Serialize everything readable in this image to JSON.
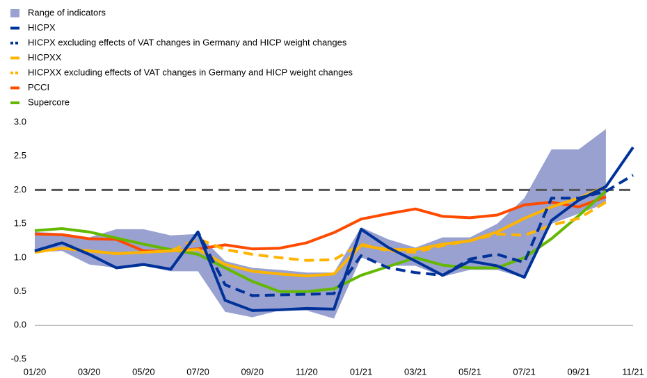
{
  "chart_data": {
    "type": "line",
    "categories": [
      "01/20",
      null,
      "03/20",
      null,
      "05/20",
      null,
      "07/20",
      null,
      "09/20",
      null,
      "11/20",
      null,
      "01/21",
      null,
      "03/21",
      null,
      "05/21",
      null,
      "07/21",
      null,
      "09/21",
      null,
      "11/21"
    ],
    "ylim": [
      -0.5,
      3.0
    ],
    "yticks": [
      {
        "value": -0.5,
        "label": "-0.5"
      },
      {
        "value": 0,
        "label": "0.0"
      },
      {
        "value": 0.5,
        "label": "0.5"
      },
      {
        "value": 1,
        "label": "1.0"
      },
      {
        "value": 1.5,
        "label": "1.5"
      },
      {
        "value": 2,
        "label": "2.0"
      },
      {
        "value": 2.5,
        "label": "2.5"
      },
      {
        "value": 3,
        "label": "3.0"
      }
    ],
    "reference_line": 2,
    "range": {
      "name": "Range of indicators",
      "color": "#98a1d0",
      "high": [
        1.38,
        1.36,
        1.3,
        1.42,
        1.42,
        1.33,
        1.35,
        0.95,
        0.85,
        0.82,
        0.78,
        0.78,
        1.45,
        1.27,
        1.15,
        1.3,
        1.3,
        1.5,
        1.88,
        2.6,
        2.6,
        2.9,
        null
      ],
      "low": [
        1.08,
        1.1,
        0.9,
        0.85,
        0.88,
        0.8,
        0.8,
        0.2,
        0.12,
        0.22,
        0.22,
        0.1,
        1.0,
        0.88,
        0.88,
        0.72,
        0.82,
        0.82,
        0.7,
        1.5,
        1.65,
        1.8,
        null
      ]
    },
    "series": [
      {
        "name": "HICPX",
        "color": "#003299",
        "dashed": false,
        "values": [
          1.1,
          1.22,
          1.05,
          0.85,
          0.9,
          0.83,
          1.38,
          0.37,
          0.22,
          0.23,
          0.25,
          0.24,
          1.42,
          1.15,
          0.95,
          0.74,
          0.95,
          0.88,
          0.71,
          1.55,
          1.85,
          2.05,
          2.63
        ]
      },
      {
        "name": "HICPX excluding effects of VAT changes in Germany and HICP weight changes",
        "color": "#003299",
        "dashed": true,
        "values": [
          1.1,
          1.22,
          1.05,
          0.85,
          0.9,
          0.83,
          1.38,
          0.6,
          0.44,
          0.45,
          0.46,
          0.47,
          1.03,
          0.85,
          0.78,
          0.74,
          0.98,
          1.05,
          0.93,
          1.88,
          1.88,
          1.98,
          2.22
        ]
      },
      {
        "name": "HICPXX",
        "color": "#ffb400",
        "dashed": false,
        "values": [
          1.08,
          1.14,
          1.1,
          1.06,
          1.08,
          1.1,
          1.12,
          0.9,
          0.8,
          0.76,
          0.73,
          0.76,
          1.18,
          1.12,
          1.12,
          1.2,
          1.25,
          1.38,
          1.58,
          1.75,
          1.88,
          2.05,
          null
        ]
      },
      {
        "name": "HICPXX excluding effects of VAT changes in Germany and HICP weight changes",
        "color": "#ffb400",
        "dashed": true,
        "values": [
          1.08,
          1.14,
          1.1,
          1.06,
          1.08,
          1.1,
          1.28,
          1.12,
          1.05,
          1.0,
          0.96,
          0.97,
          1.2,
          1.1,
          1.08,
          1.18,
          1.25,
          1.35,
          1.33,
          1.48,
          1.58,
          1.82,
          null
        ]
      },
      {
        "name": "PCCI",
        "color": "#ff4b00",
        "dashed": false,
        "values": [
          1.35,
          1.34,
          1.28,
          1.27,
          1.1,
          1.1,
          1.13,
          1.19,
          1.13,
          1.14,
          1.22,
          1.37,
          1.57,
          1.65,
          1.72,
          1.61,
          1.59,
          1.63,
          1.78,
          1.82,
          1.75,
          1.9,
          null
        ]
      },
      {
        "name": "Supercore",
        "color": "#65b800",
        "dashed": false,
        "values": [
          1.4,
          1.43,
          1.38,
          1.29,
          1.2,
          1.12,
          1.05,
          0.85,
          0.65,
          0.5,
          0.5,
          0.54,
          0.74,
          0.87,
          1.0,
          0.89,
          0.85,
          0.85,
          1.0,
          1.28,
          1.62,
          1.98,
          null
        ]
      }
    ]
  }
}
